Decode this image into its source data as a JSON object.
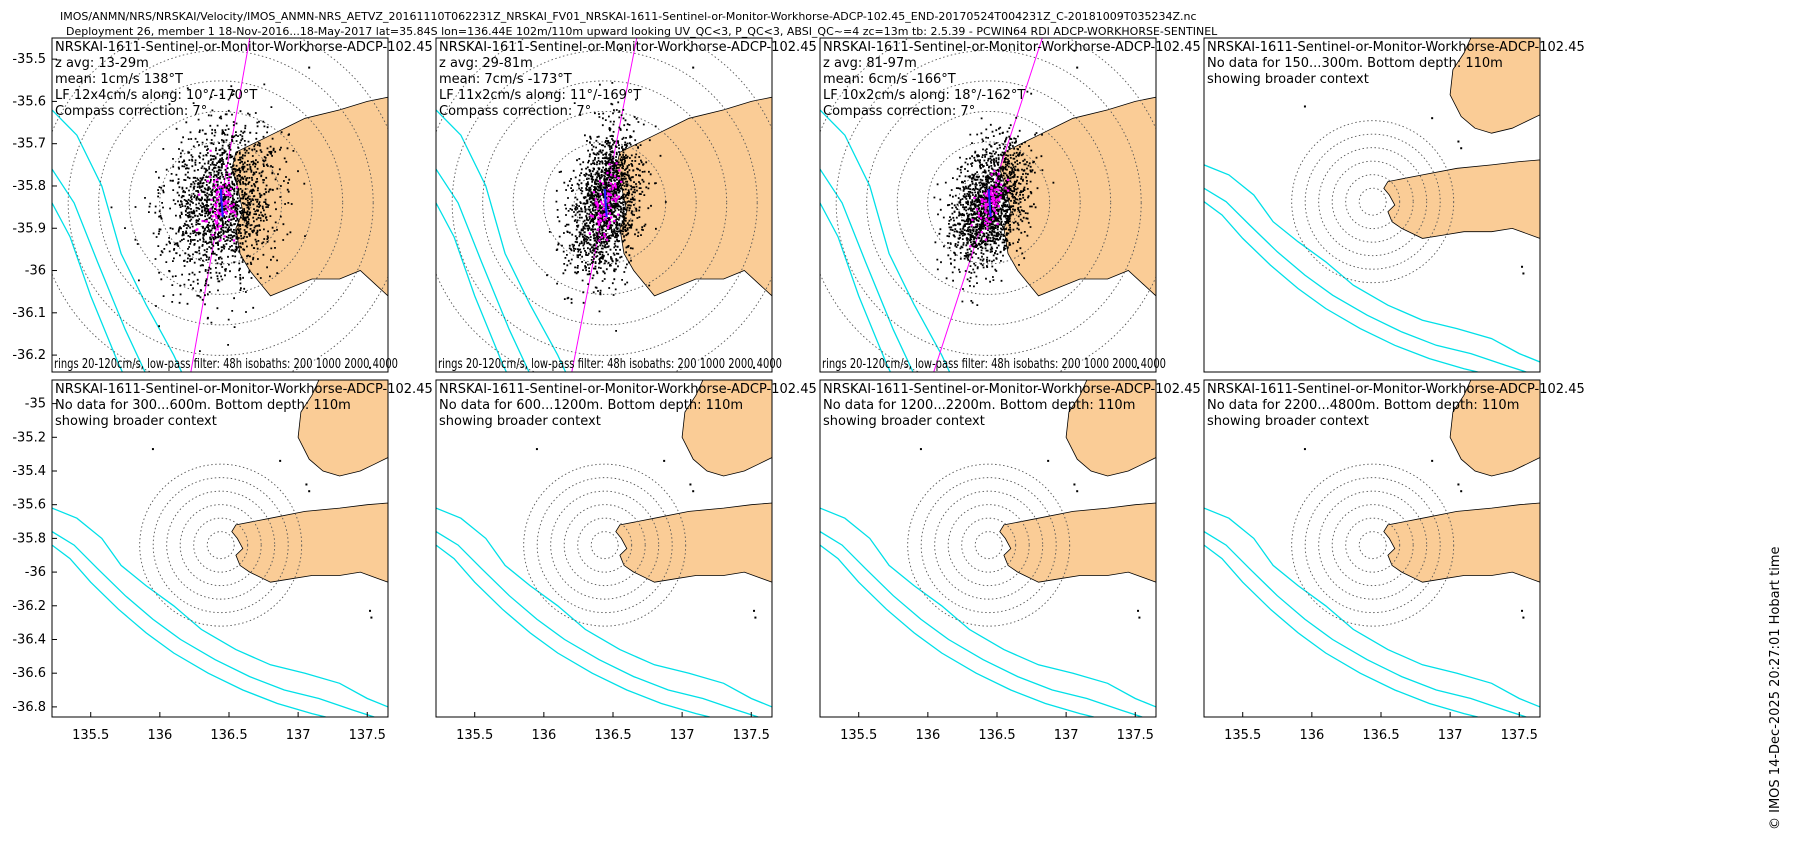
{
  "header": {
    "line1": "IMOS/ANMN/NRS/NRSKAI/Velocity/IMOS_ANMN-NRS_AETVZ_20161110T062231Z_NRSKAI_FV01_NRSKAI-1611-Sentinel-or-Monitor-Workhorse-ADCP-102.45_END-20170524T004231Z_C-20181009T035234Z.nc",
    "line2": "Deployment 26, member 1 18-Nov-2016...18-May-2017 lat=35.84S lon=136.44E 102m/110m upward looking UV_QC<3, P_QC<3, ABSI_QC~=4 zc=13m tb: 2.5.39 - PCWIN64 RDI ADCP-WORKHORSE-SENTINEL"
  },
  "timestamp_label": "© IMOS 14-Dec-2025 20:27:01 Hobart time",
  "colors": {
    "land": "#FACC96",
    "isobath": "#00E0E8",
    "scatter": "#000000",
    "lowpass": "#FF00FF",
    "mean": "#1E1EFF",
    "ring": "#555555"
  },
  "chart_data": {
    "type": "scatter",
    "station": {
      "lon": 136.44,
      "lat": -35.84
    },
    "x_ticks": [
      "135.5",
      "136",
      "136.5",
      "137",
      "137.5"
    ],
    "x_tick_values": [
      135.5,
      136,
      136.5,
      137,
      137.5
    ],
    "row1_y_ticks": [
      "-35.5",
      "-35.6",
      "-35.7",
      "-35.8",
      "-35.9",
      "-36",
      "-36.1",
      "-36.2"
    ],
    "row1_y_tick_values": [
      -35.5,
      -35.6,
      -35.7,
      -35.8,
      -35.9,
      -36,
      -36.1,
      -36.2
    ],
    "row2_y_ticks": [
      "-35",
      "-35.2",
      "-35.4",
      "-35.6",
      "-35.8",
      "-36",
      "-36.2",
      "-36.4",
      "-36.6",
      "-36.8"
    ],
    "row2_y_tick_values": [
      -35,
      -35.2,
      -35.4,
      -35.6,
      -35.8,
      -36,
      -36.2,
      -36.4,
      -36.6,
      -36.8
    ],
    "panels": [
      {
        "title": "NRSKAI-1611-Sentinel-or-Monitor-Workhorse-ADCP-102.45",
        "lines": [
          "z avg: 13-29m",
          "mean: 1cm/s 138°T",
          "LF 12x4cm/s along: 10°/-170°T",
          "Compass correction: 7°"
        ],
        "footer": "rings 20-120cm/s, low-pass filter: 48h isobaths: 200 1000 2000 4000",
        "has_data": true,
        "major_axis_deg": 10,
        "major_cm_s": 12,
        "minor_cm_s": 4,
        "xlim": [
          135.22,
          137.65
        ],
        "ylim": [
          -36.24,
          -35.45
        ]
      },
      {
        "title": "NRSKAI-1611-Sentinel-or-Monitor-Workhorse-ADCP-102.45",
        "lines": [
          "z avg: 29-81m",
          "mean: 7cm/s -173°T",
          "LF 11x2cm/s along: 11°/-169°T",
          "Compass correction: 7°"
        ],
        "footer": "rings 20-120cm/s, low-pass filter: 48h isobaths: 200 1000 2000 4000",
        "has_data": true,
        "major_axis_deg": 11,
        "major_cm_s": 11,
        "minor_cm_s": 2,
        "xlim": [
          135.22,
          137.65
        ],
        "ylim": [
          -36.24,
          -35.45
        ]
      },
      {
        "title": "NRSKAI-1611-Sentinel-or-Monitor-Workhorse-ADCP-102.45",
        "lines": [
          "z avg: 81-97m",
          "mean: 6cm/s -166°T",
          "LF 10x2cm/s along: 18°/-162°T",
          "Compass correction: 7°"
        ],
        "footer": "rings 20-120cm/s, low-pass filter: 48h isobaths: 200 1000 2000 4000",
        "has_data": true,
        "major_axis_deg": 18,
        "major_cm_s": 10,
        "minor_cm_s": 2,
        "xlim": [
          135.22,
          137.65
        ],
        "ylim": [
          -36.24,
          -35.45
        ]
      },
      {
        "title": "NRSKAI-1611-Sentinel-or-Monitor-Workhorse-ADCP-102.45",
        "lines": [
          "No data for 150...300m. Bottom depth: 110m",
          "showing broader context"
        ],
        "has_data": false,
        "xlim": [
          135.22,
          137.65
        ],
        "ylim": [
          -36.86,
          -34.86
        ]
      },
      {
        "title": "NRSKAI-1611-Sentinel-or-Monitor-Workhorse-ADCP-102.45",
        "lines": [
          "No data for 300...600m. Bottom depth: 110m",
          "showing broader context"
        ],
        "has_data": false,
        "xlim": [
          135.22,
          137.65
        ],
        "ylim": [
          -36.86,
          -34.86
        ]
      },
      {
        "title": "NRSKAI-1611-Sentinel-or-Monitor-Workhorse-ADCP-102.45",
        "lines": [
          "No data for 600...1200m. Bottom depth: 110m",
          "showing broader context"
        ],
        "has_data": false,
        "xlim": [
          135.22,
          137.65
        ],
        "ylim": [
          -36.86,
          -34.86
        ]
      },
      {
        "title": "NRSKAI-1611-Sentinel-or-Monitor-Workhorse-ADCP-102.45",
        "lines": [
          "No data for 1200...2200m. Bottom depth: 110m",
          "showing broader context"
        ],
        "has_data": false,
        "xlim": [
          135.22,
          137.65
        ],
        "ylim": [
          -36.86,
          -34.86
        ]
      },
      {
        "title": "NRSKAI-1611-Sentinel-or-Monitor-Workhorse-ADCP-102.45",
        "lines": [
          "No data for 2200...4800m. Bottom depth: 110m",
          "showing broader context"
        ],
        "has_data": false,
        "xlim": [
          135.22,
          137.65
        ],
        "ylim": [
          -36.86,
          -34.86
        ]
      }
    ]
  }
}
